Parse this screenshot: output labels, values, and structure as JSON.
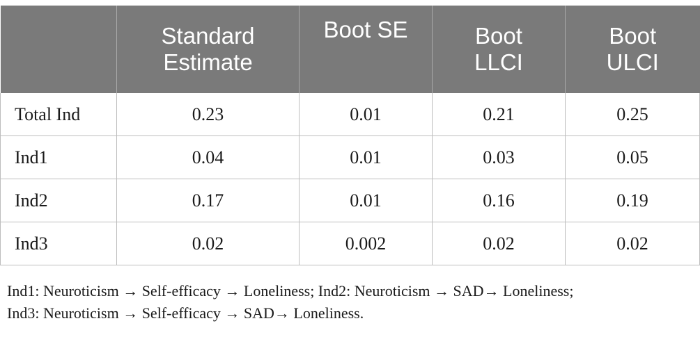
{
  "table": {
    "headers": [
      "",
      "Standard Estimate",
      "Boot SE",
      "Boot LLCI",
      "Boot ULCI"
    ],
    "header_lines": [
      [
        "",
        ""
      ],
      [
        "Standard",
        "Estimate"
      ],
      [
        "Boot SE",
        ""
      ],
      [
        "Boot",
        "LLCI"
      ],
      [
        "Boot",
        "ULCI"
      ]
    ],
    "rows": [
      [
        "Total Ind",
        "0.23",
        "0.01",
        "0.21",
        "0.25"
      ],
      [
        "Ind1",
        "0.04",
        "0.01",
        "0.03",
        "0.05"
      ],
      [
        "Ind2",
        "0.17",
        "0.01",
        "0.16",
        "0.19"
      ],
      [
        "Ind3",
        "0.02",
        "0.002",
        "0.02",
        "0.02"
      ]
    ]
  },
  "footnote": {
    "line1": "Ind1: Neuroticism → Self-efficacy → Loneliness; Ind2: Neuroticism → SAD→ Loneliness;",
    "line2": "Ind3: Neuroticism → Self-efficacy → SAD→ Loneliness."
  },
  "colors": {
    "header_bg": "#7a7a7a",
    "header_text": "#ffffff",
    "grid": "#bdbdbd"
  }
}
